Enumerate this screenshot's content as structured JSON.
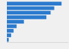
{
  "chart_data": {
    "type": "bar",
    "orientation": "horizontal",
    "categories": [
      null,
      null,
      null,
      null,
      null,
      null,
      null,
      null,
      null
    ],
    "values": [
      90,
      78,
      72,
      65,
      28,
      16,
      11,
      7,
      3
    ],
    "color": "#2b7bce",
    "xlim": [
      0,
      100
    ],
    "grid": false,
    "tick_labels": false
  }
}
